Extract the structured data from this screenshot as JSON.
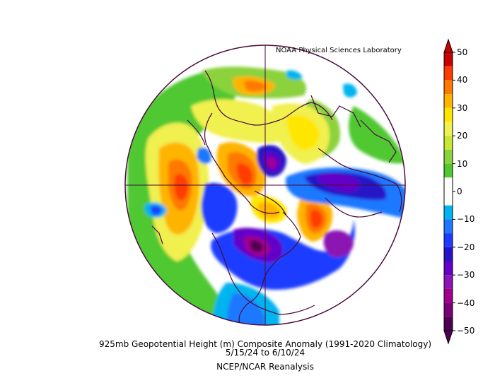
{
  "credit": "NOAA Physical Sciences Laboratory",
  "caption": {
    "title": "925mb Geopotential Height (m) Composite Anomaly (1991-2020 Climatology)",
    "dates": "5/15/24  to 6/10/24",
    "source": "NCEP/NCAR Reanalysis"
  },
  "colorbar": {
    "ticks": [
      "50",
      "40",
      "30",
      "20",
      "10",
      "0",
      "-10",
      "-20",
      "-30",
      "-40",
      "-50"
    ],
    "bins": [
      {
        "from": 45,
        "to": 50,
        "color": "#c80000"
      },
      {
        "from": 40,
        "to": 45,
        "color": "#ff3c00"
      },
      {
        "from": 35,
        "to": 40,
        "color": "#ff7800"
      },
      {
        "from": 30,
        "to": 35,
        "color": "#ffb400"
      },
      {
        "from": 25,
        "to": 30,
        "color": "#ffe600"
      },
      {
        "from": 20,
        "to": 25,
        "color": "#f0f050"
      },
      {
        "from": 15,
        "to": 20,
        "color": "#c8e632"
      },
      {
        "from": 10,
        "to": 15,
        "color": "#8cd23c"
      },
      {
        "from": 5,
        "to": 10,
        "color": "#50c832"
      },
      {
        "from": 0,
        "to": 5,
        "color": "#ffffff"
      },
      {
        "from": -5,
        "to": 0,
        "color": "#ffffff"
      },
      {
        "from": -10,
        "to": -5,
        "color": "#00b4f0"
      },
      {
        "from": -15,
        "to": -10,
        "color": "#1e78ff"
      },
      {
        "from": -20,
        "to": -15,
        "color": "#1e3cff"
      },
      {
        "from": -25,
        "to": -20,
        "color": "#2814c8"
      },
      {
        "from": -30,
        "to": -25,
        "color": "#6400c8"
      },
      {
        "from": -35,
        "to": -30,
        "color": "#8c14b4"
      },
      {
        "from": -40,
        "to": -35,
        "color": "#a0008c"
      },
      {
        "from": -45,
        "to": -40,
        "color": "#780078"
      },
      {
        "from": -50,
        "to": -45,
        "color": "#500050"
      }
    ],
    "range": [
      -50,
      50
    ]
  },
  "map": {
    "projection": "north polar stereographic",
    "ocean_color": "#ffffff",
    "coast_color": "#4b0a3c"
  }
}
